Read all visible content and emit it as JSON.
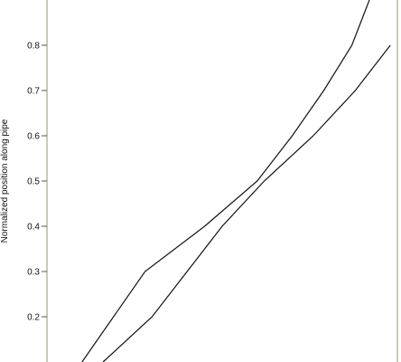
{
  "chart_data": {
    "type": "line",
    "title": "",
    "xlabel": "",
    "ylabel": "Normalized position along pipe",
    "ylim": [
      0.1,
      0.9
    ],
    "xlim": [
      0,
      1
    ],
    "yticks": [
      "0.2",
      "0.3",
      "0.4",
      "0.5",
      "0.6",
      "0.7",
      "0.8"
    ],
    "grid": false,
    "colors": {
      "line": "#111111",
      "frame": "#b8b8a0",
      "axis": "#555555"
    },
    "series": [
      {
        "x": [
          0.1,
          0.28,
          0.45,
          0.6,
          0.7,
          0.79,
          0.87,
          0.92
        ],
        "y": [
          0.1,
          0.3,
          0.4,
          0.5,
          0.6,
          0.7,
          0.8,
          0.9
        ]
      },
      {
        "x": [
          0.16,
          0.3,
          0.4,
          0.5,
          0.62,
          0.76,
          0.88,
          0.98
        ],
        "y": [
          0.1,
          0.2,
          0.3,
          0.4,
          0.5,
          0.6,
          0.7,
          0.8
        ]
      }
    ]
  }
}
